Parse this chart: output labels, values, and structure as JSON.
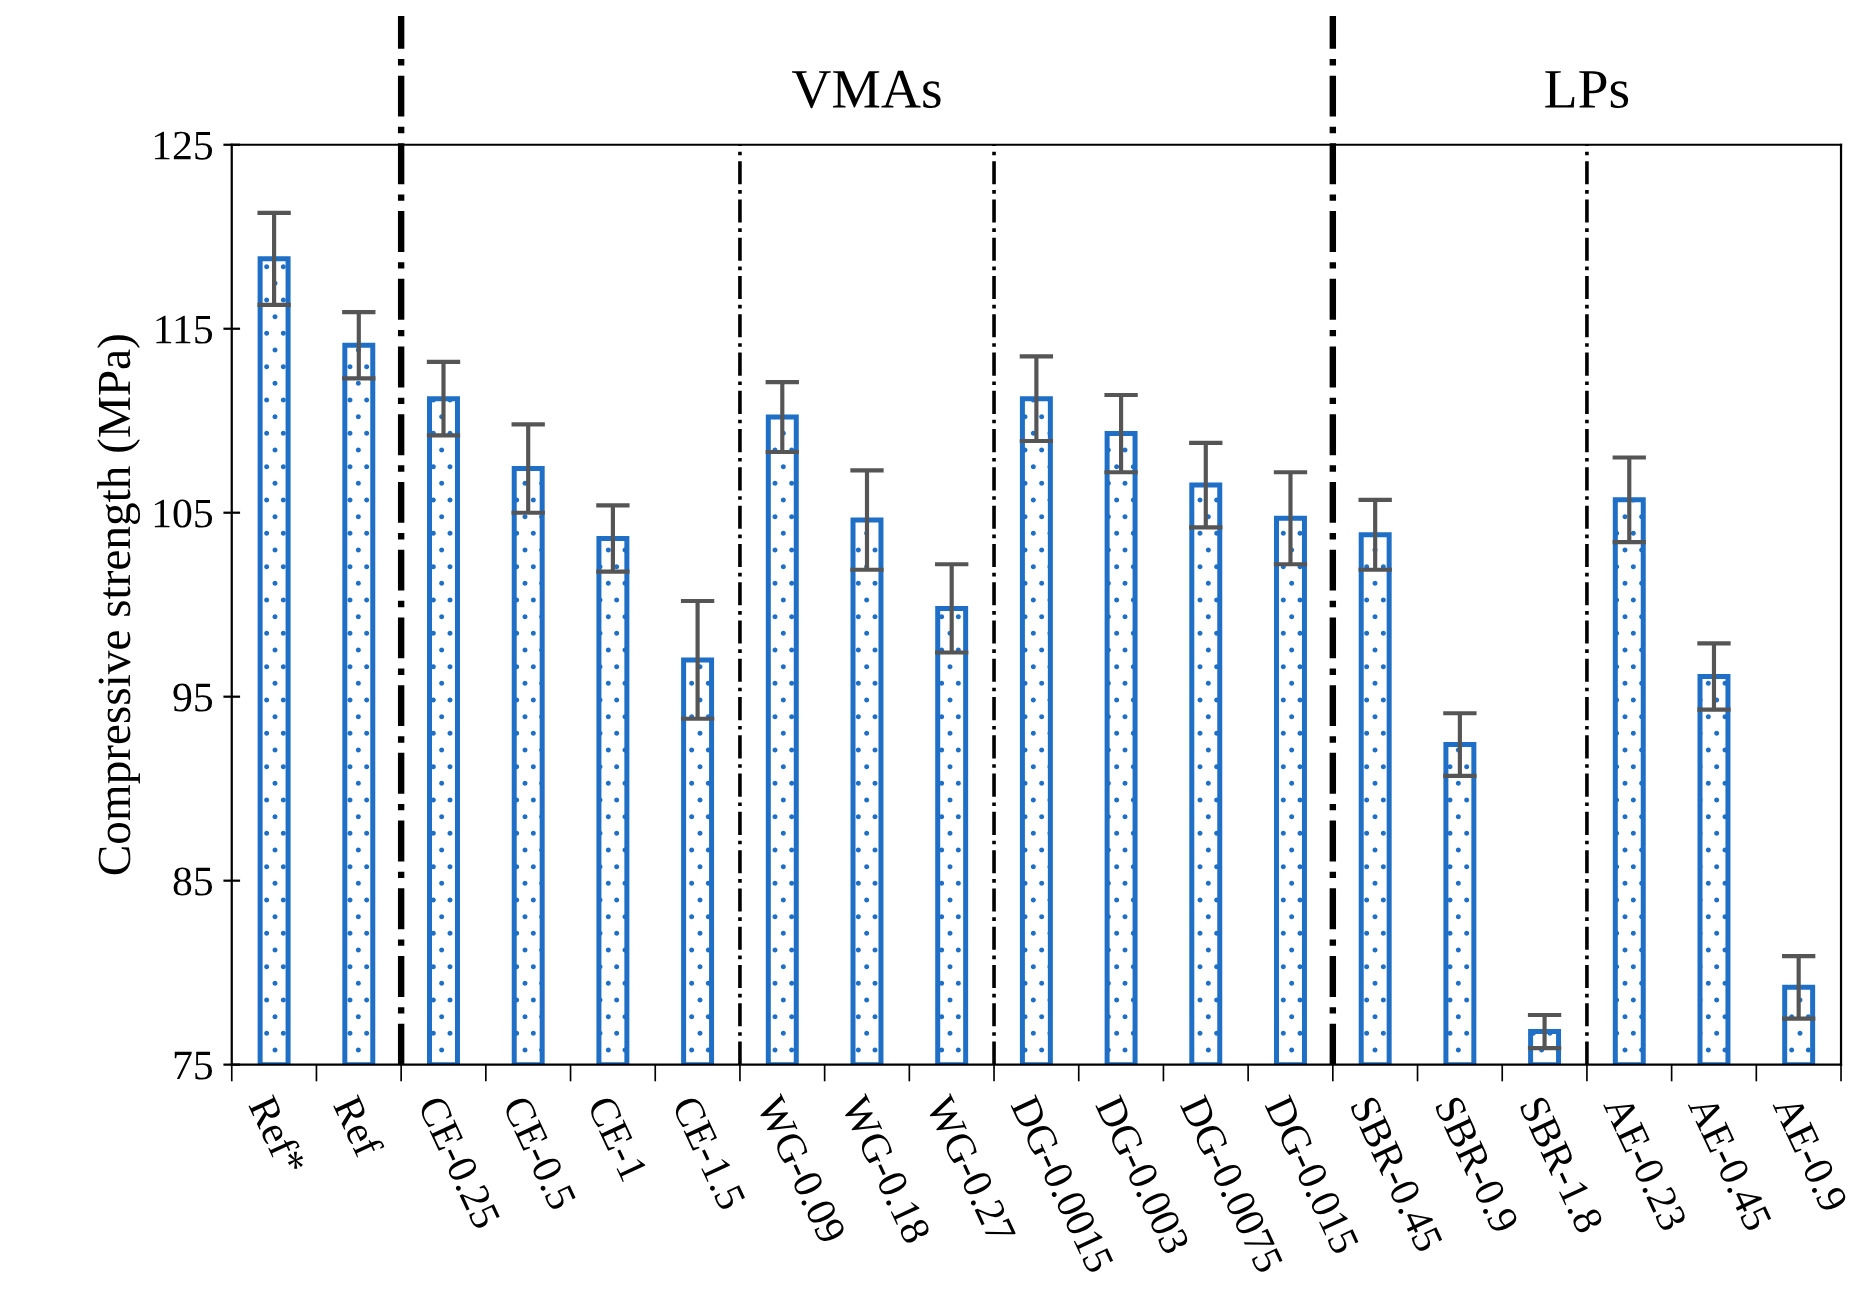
{
  "chart_data": {
    "type": "bar",
    "ylabel": "Compressive strength (MPa)",
    "categories": [
      "Ref*",
      "Ref",
      "CE-0.25",
      "CE-0.5",
      "CE-1",
      "CE-1.5",
      "WG-0.09",
      "WG-0.18",
      "WG-0.27",
      "DG-0.0015",
      "DG-0.003",
      "DG-0.0075",
      "DG-0.015",
      "SBR-0.45",
      "SBR-0.9",
      "SBR-1.8",
      "AE-0.23",
      "AE-0.45",
      "AE-0.9"
    ],
    "values": [
      118.8,
      114.1,
      111.2,
      107.4,
      103.6,
      97.0,
      110.2,
      104.6,
      99.8,
      111.2,
      109.3,
      106.5,
      104.7,
      103.8,
      92.4,
      76.8,
      105.7,
      96.1,
      79.2
    ],
    "errors": [
      2.5,
      1.8,
      2.0,
      2.4,
      1.8,
      3.2,
      1.9,
      2.7,
      2.4,
      2.3,
      2.1,
      2.3,
      2.5,
      1.9,
      1.7,
      0.9,
      2.3,
      1.8,
      1.7
    ],
    "color": "#1f6fc6",
    "ylim": [
      75,
      125
    ],
    "yticks": [
      75,
      85,
      95,
      105,
      115,
      125
    ],
    "grid": false,
    "annotations": [
      "VMAs",
      "LPs"
    ]
  }
}
